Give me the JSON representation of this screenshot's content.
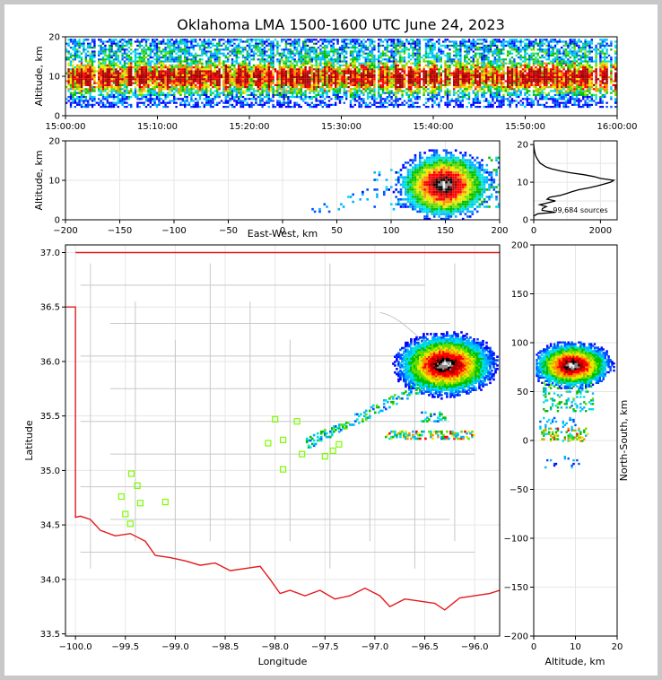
{
  "title": "Oklahoma LMA 1500-1600 UTC June 24, 2023",
  "source_count_label": "99,684 sources",
  "colors": {
    "state_border": "#e31a1c",
    "county_lines": "#c0c0c0",
    "stations": "#7cfc00",
    "density_low": "#0000ff",
    "density_high": "#ffffff"
  },
  "chart_data": [
    {
      "id": "time-height",
      "type": "heatmap",
      "title": "",
      "xlabel": "",
      "ylabel": "Altitude, km",
      "xlim": [
        "15:00:00",
        "16:00:00"
      ],
      "ylim": [
        0,
        20
      ],
      "xtick_labels": [
        "15:00:00",
        "15:10:00",
        "15:20:00",
        "15:30:00",
        "15:40:00",
        "15:50:00",
        "16:00:00"
      ],
      "yticks": [
        0,
        10,
        20
      ],
      "grid": false,
      "description_values": {
        "source_altitude_band_km": [
          2,
          19
        ],
        "peak_density_altitude_km": 10
      }
    },
    {
      "id": "ew-height",
      "type": "heatmap",
      "xlabel": "East-West, km",
      "ylabel": "Altitude, km",
      "xlim": [
        -200,
        200
      ],
      "ylim": [
        0,
        20
      ],
      "xticks": [
        -200,
        -150,
        -100,
        -50,
        0,
        50,
        100,
        150,
        200
      ],
      "yticks": [
        0,
        10,
        20
      ],
      "grid": true,
      "core": {
        "x_center_km": 148,
        "alt_center_km": 9,
        "x_range_km": [
          105,
          200
        ],
        "alt_range_km": [
          1,
          20
        ]
      },
      "anvil": {
        "x_range_km": [
          25,
          105
        ],
        "alt_range_km": [
          1,
          14
        ]
      }
    },
    {
      "id": "alt-histogram",
      "type": "line",
      "xlabel": "",
      "ylabel": "",
      "xlim": [
        0,
        2500
      ],
      "ylim": [
        0,
        21
      ],
      "xticks": [
        0,
        2000
      ],
      "yticks": [
        0,
        10,
        20
      ],
      "grid": true,
      "series": [
        {
          "altitude_km": [
            0.3,
            1.0,
            1.6,
            2.0,
            2.5,
            3.0,
            3.5,
            4.0,
            4.5,
            5.0,
            5.5,
            6.0,
            6.5,
            7.0,
            7.5,
            8.0,
            8.5,
            9.0,
            9.5,
            10.0,
            10.5,
            11.0,
            11.5,
            12.0,
            12.5,
            13.0,
            13.5,
            14.0,
            15.0,
            16.0,
            17.0,
            18.0,
            19.0,
            20.0
          ],
          "count": [
            0,
            0,
            120,
            650,
            250,
            260,
            380,
            180,
            420,
            650,
            400,
            480,
            800,
            980,
            1150,
            1350,
            1650,
            1900,
            2100,
            2300,
            2400,
            2000,
            1800,
            1500,
            1100,
            800,
            550,
            380,
            200,
            120,
            60,
            30,
            10,
            0
          ]
        }
      ]
    },
    {
      "id": "plan-view",
      "type": "heatmap",
      "xlabel": "Longitude",
      "ylabel": "Latitude",
      "xlim": [
        -100.1,
        -95.75
      ],
      "ylim": [
        33.48,
        37.07
      ],
      "xticks": [
        -100.0,
        -99.5,
        -99.0,
        -98.5,
        -98.0,
        -97.5,
        -97.0,
        -96.5,
        -96.0
      ],
      "xtick_labels": [
        "−100.0",
        "−99.5",
        "−99.0",
        "−98.5",
        "−98.0",
        "−97.5",
        "−97.0",
        "−96.5",
        "−96.0"
      ],
      "yticks": [
        33.5,
        34.0,
        34.5,
        35.0,
        35.5,
        36.0,
        36.5,
        37.0
      ],
      "ytick_labels": [
        "33.5",
        "34.0",
        "34.5",
        "35.0",
        "35.5",
        "36.0",
        "36.5",
        "37.0"
      ],
      "grid": true,
      "stations": [
        {
          "lon": -99.54,
          "lat": 34.76
        },
        {
          "lon": -99.5,
          "lat": 34.6
        },
        {
          "lon": -99.45,
          "lat": 34.51
        },
        {
          "lon": -99.35,
          "lat": 34.7
        },
        {
          "lon": -99.38,
          "lat": 34.86
        },
        {
          "lon": -99.44,
          "lat": 34.97
        },
        {
          "lon": -99.1,
          "lat": 34.71
        },
        {
          "lon": -98.07,
          "lat": 35.25
        },
        {
          "lon": -98.0,
          "lat": 35.47
        },
        {
          "lon": -97.92,
          "lat": 35.28
        },
        {
          "lon": -97.92,
          "lat": 35.01
        },
        {
          "lon": -97.78,
          "lat": 35.45
        },
        {
          "lon": -97.73,
          "lat": 35.15
        },
        {
          "lon": -97.5,
          "lat": 35.13
        },
        {
          "lon": -97.42,
          "lat": 35.18
        },
        {
          "lon": -97.36,
          "lat": 35.24
        }
      ],
      "core": {
        "lon": -96.3,
        "lat": 35.98
      }
    },
    {
      "id": "ns-height",
      "type": "heatmap",
      "xlabel": "Altitude, km",
      "ylabel": "North-South, km",
      "xlim": [
        0,
        20
      ],
      "ylim": [
        -200,
        200
      ],
      "xticks": [
        0,
        10,
        20
      ],
      "yticks": [
        -200,
        -150,
        -100,
        -50,
        0,
        50,
        100,
        150,
        200
      ],
      "ytick_labels": [
        "−200",
        "−150",
        "−100",
        "−50",
        "0",
        "50",
        "100",
        "150",
        "200"
      ],
      "grid": true,
      "core": {
        "ns_center_km": 78,
        "alt_center_km": 9
      }
    }
  ]
}
